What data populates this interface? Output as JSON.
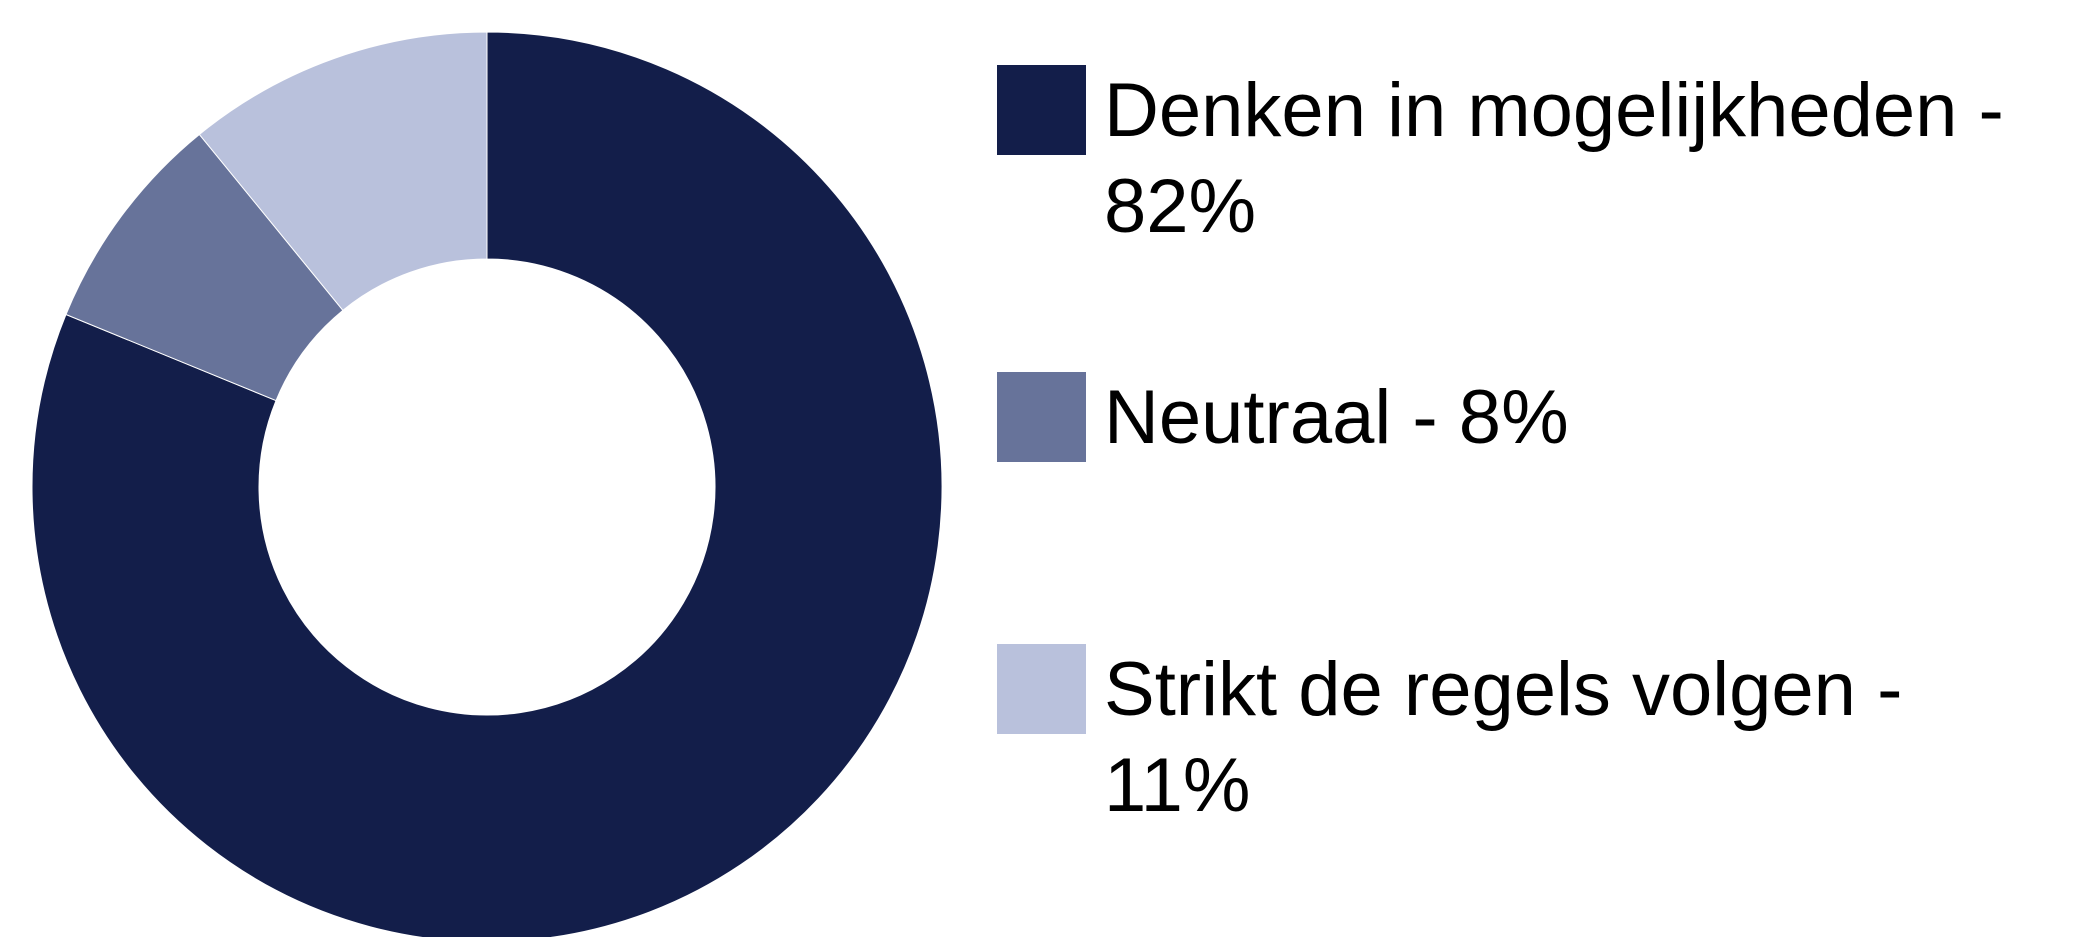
{
  "chart_data": {
    "type": "donut",
    "categories": [
      "Denken in mogelijkheden - 82%",
      "Neutraal - 8%",
      "Strikt de regels volgen - 11%"
    ],
    "values": [
      82,
      8,
      11
    ],
    "colors": [
      "#131e4a",
      "#67739a",
      "#b9c1dc"
    ]
  }
}
